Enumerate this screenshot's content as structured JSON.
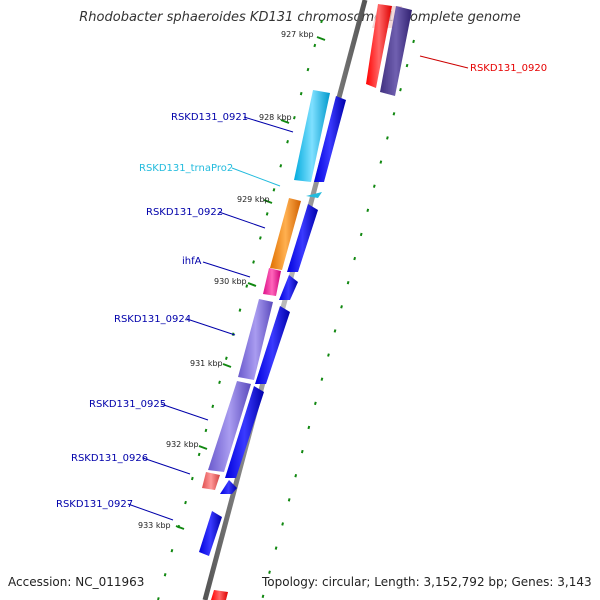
{
  "title": "Rhodobacter sphaeroides KD131 chromosome 1, complete genome",
  "footer": {
    "accession": "Accession: NC_011963",
    "topology": "Topology: circular; Length: 3,152,792 bp; Genes: 3,143"
  },
  "ticks": [
    "927 kbp",
    "928 kbp",
    "929 kbp",
    "930 kbp",
    "931 kbp",
    "932 kbp",
    "933 kbp"
  ],
  "genes": [
    {
      "name": "RSKD131_0920",
      "color": "#e60000"
    },
    {
      "name": "RSKD131_0921",
      "color": "#0000aa"
    },
    {
      "name": "RSKD131_trnaPro2",
      "color": "#22bbdd"
    },
    {
      "name": "RSKD131_0922",
      "color": "#0000aa"
    },
    {
      "name": "ihfA",
      "color": "#0000aa"
    },
    {
      "name": "RSKD131_0924",
      "color": "#0000aa"
    },
    {
      "name": "RSKD131_0925",
      "color": "#0000aa"
    },
    {
      "name": "RSKD131_0926",
      "color": "#0000aa"
    },
    {
      "name": "RSKD131_0927",
      "color": "#0000aa"
    }
  ]
}
